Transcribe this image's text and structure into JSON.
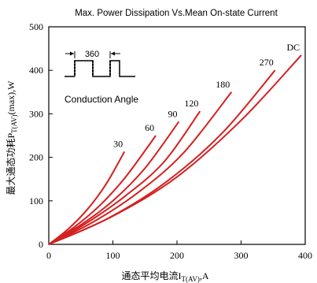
{
  "chart_data": {
    "type": "line",
    "title": "Max. Power Dissipation Vs.Mean On-state Current",
    "xlabel": {
      "prefix": "通态平均电流I",
      "sub": "T(AV)",
      "suffix": ",A"
    },
    "ylabel": {
      "prefix": "最大通态功耗P",
      "sub": "T(AV)",
      "suffix": "(max),W"
    },
    "xlim": [
      0,
      400
    ],
    "ylim": [
      0,
      500
    ],
    "x_ticks": [
      "0",
      "100",
      "200",
      "300",
      "400"
    ],
    "y_ticks": [
      "0",
      "100",
      "200",
      "300",
      "400",
      "500"
    ],
    "grid": false,
    "line_color": "#d42020",
    "series": [
      {
        "name": "30",
        "points": [
          [
            0,
            0
          ],
          [
            30,
            35
          ],
          [
            60,
            80
          ],
          [
            90,
            140
          ],
          [
            118,
            213
          ]
        ]
      },
      {
        "name": "60",
        "points": [
          [
            0,
            0
          ],
          [
            40,
            40
          ],
          [
            80,
            90
          ],
          [
            120,
            155
          ],
          [
            167,
            250
          ]
        ]
      },
      {
        "name": "90",
        "points": [
          [
            0,
            0
          ],
          [
            50,
            45
          ],
          [
            100,
            100
          ],
          [
            150,
            175
          ],
          [
            203,
            282
          ]
        ]
      },
      {
        "name": "120",
        "points": [
          [
            0,
            0
          ],
          [
            60,
            50
          ],
          [
            120,
            112
          ],
          [
            180,
            190
          ],
          [
            236,
            306
          ]
        ]
      },
      {
        "name": "180",
        "points": [
          [
            0,
            0
          ],
          [
            70,
            52
          ],
          [
            140,
            120
          ],
          [
            210,
            210
          ],
          [
            285,
            350
          ]
        ]
      },
      {
        "name": "270",
        "points": [
          [
            0,
            0
          ],
          [
            90,
            58
          ],
          [
            180,
            140
          ],
          [
            270,
            255
          ],
          [
            353,
            400
          ]
        ]
      },
      {
        "name": "DC",
        "points": [
          [
            0,
            0
          ],
          [
            100,
            65
          ],
          [
            200,
            155
          ],
          [
            300,
            285
          ],
          [
            394,
            435
          ]
        ]
      }
    ],
    "annotation": {
      "pulse_width": "360",
      "label": "Conduction Angle"
    }
  }
}
